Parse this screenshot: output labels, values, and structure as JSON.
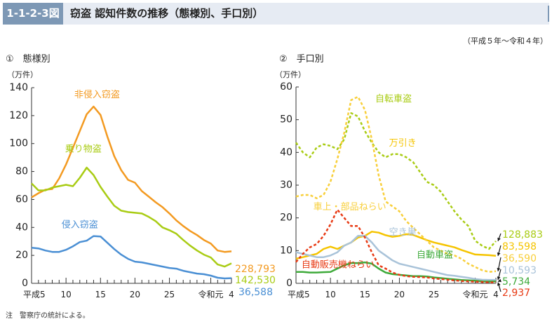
{
  "header": {
    "figure_id": "1-1-2-3図",
    "title": "窃盗 認知件数の推移（態様別、手口別）"
  },
  "period": "（平成５年～令和４年）",
  "note": "注　警察庁の統計による。",
  "chart_data": [
    {
      "type": "line",
      "title": "①　態様別",
      "ylabel": "（万件）",
      "ylim": [
        0,
        140
      ],
      "yticks": [
        0,
        20,
        40,
        60,
        80,
        100,
        120,
        140
      ],
      "x_tick_labels": [
        {
          "i": 0,
          "label": "平成5"
        },
        {
          "i": 5,
          "label": "10"
        },
        {
          "i": 10,
          "label": "15"
        },
        {
          "i": 15,
          "label": "20"
        },
        {
          "i": 20,
          "label": "25"
        },
        {
          "i": 26,
          "label": "令和元"
        },
        {
          "i": 29,
          "label": "4"
        }
      ],
      "years": 30,
      "series": [
        {
          "name": "非侵入窃盗",
          "color": "#f39a21",
          "dash": false,
          "end_value": "228,793",
          "values": [
            61.5,
            64.5,
            67,
            67.5,
            75,
            85,
            97,
            109,
            121,
            126.5,
            120.5,
            105,
            91,
            81,
            74,
            72,
            66,
            62,
            58,
            54.5,
            50,
            45,
            41,
            37.5,
            34.5,
            31,
            28.5,
            23.5,
            22.5,
            22.9
          ]
        },
        {
          "name": "乗り物盗",
          "color": "#a9cc14",
          "dash": false,
          "end_value": "142,530",
          "values": [
            71.5,
            66.5,
            66.5,
            68.5,
            69.5,
            70.5,
            69.5,
            75.5,
            82.8,
            77.5,
            69,
            62,
            55.5,
            52,
            51,
            50.5,
            50,
            47.5,
            44.5,
            40,
            38,
            35.5,
            31,
            27,
            23.5,
            20.5,
            18.5,
            13.5,
            12,
            14.3
          ]
        },
        {
          "name": "侵入窃盗",
          "color": "#4a8fd4",
          "dash": false,
          "end_value": "36,588",
          "values": [
            25.5,
            25,
            23.5,
            22.5,
            22.5,
            24,
            26.5,
            29.5,
            30.5,
            33.8,
            33.5,
            29,
            24.5,
            20.5,
            17.5,
            15.5,
            15,
            14,
            13,
            12,
            11,
            10.5,
            9,
            8,
            7,
            6.5,
            5.5,
            4,
            3.5,
            3.7
          ]
        }
      ]
    },
    {
      "type": "line",
      "title": "②　手口別",
      "ylabel": "（万件）",
      "ylim": [
        0,
        60
      ],
      "yticks": [
        0,
        10,
        20,
        30,
        40,
        50,
        60
      ],
      "x_tick_labels": [
        {
          "i": 0,
          "label": "平成5"
        },
        {
          "i": 5,
          "label": "10"
        },
        {
          "i": 10,
          "label": "15"
        },
        {
          "i": 15,
          "label": "20"
        },
        {
          "i": 20,
          "label": "25"
        },
        {
          "i": 26,
          "label": "令和元"
        },
        {
          "i": 29,
          "label": "4"
        }
      ],
      "years": 30,
      "series": [
        {
          "name": "自転車盗",
          "color": "#a9cc14",
          "dash": true,
          "end_value": "128,883",
          "values": [
            43,
            40,
            38.5,
            41.5,
            42.5,
            42,
            41,
            44,
            52,
            51,
            46.5,
            43,
            40,
            38.5,
            39.5,
            39.5,
            38.5,
            37,
            34,
            31,
            30,
            28,
            25,
            22,
            19.5,
            17.5,
            13,
            11.5,
            10.5,
            12.9
          ]
        },
        {
          "name": "万引き",
          "color": "#f5c400",
          "dash": false,
          "end_value": "83,598",
          "values": [
            7.5,
            8,
            8.5,
            9,
            10.5,
            11.2,
            10.5,
            11.5,
            12.5,
            14,
            14.5,
            15.8,
            15.5,
            14.7,
            14.2,
            14.5,
            15,
            14.8,
            14,
            13.2,
            12.5,
            12,
            11.5,
            11,
            10.2,
            9.5,
            8.8,
            8.7,
            8.6,
            8.4
          ]
        },
        {
          "name": "車上・部品ねらい",
          "color": "#f8cf3a",
          "dash": true,
          "end_value": "36,590",
          "values": [
            26.5,
            27,
            27,
            26,
            27,
            31,
            38,
            46,
            56,
            57,
            53,
            44,
            33,
            25,
            23.5,
            22,
            19,
            17,
            15,
            13,
            11,
            10,
            9,
            8.5,
            7.5,
            6,
            5,
            4,
            3.5,
            3.7
          ]
        },
        {
          "name": "空き巣",
          "color": "#a9c3d9",
          "dash": false,
          "end_value": "10,593",
          "values": [
            9.5,
            9,
            8.5,
            8,
            8,
            8.5,
            9.5,
            11.5,
            12.5,
            14.5,
            14.5,
            12.5,
            10,
            8.5,
            7,
            6,
            5.5,
            5,
            4.5,
            4,
            3.5,
            3,
            2.5,
            2.3,
            2,
            1.7,
            1.3,
            1.1,
            1.05,
            1.06
          ]
        },
        {
          "name": "自動車盗",
          "color": "#3eaa3a",
          "dash": false,
          "end_value": "5,734",
          "values": [
            3.5,
            3.5,
            3.3,
            3.3,
            3.4,
            3.5,
            4.5,
            5.5,
            6.2,
            6.2,
            6.4,
            6,
            4.5,
            3.3,
            2.8,
            2.6,
            2.4,
            2.2,
            2.2,
            2.1,
            1.8,
            1.6,
            1.4,
            1.2,
            1,
            0.9,
            0.8,
            0.6,
            0.55,
            0.57
          ]
        },
        {
          "name": "自動販売機ねらい",
          "color": "#e83a14",
          "dash": true,
          "end_value": "2,937",
          "values": [
            6.5,
            9,
            11,
            12,
            14.5,
            18,
            22.5,
            20,
            17.5,
            17.5,
            14,
            9.5,
            5.5,
            4.5,
            3.3,
            2.6,
            2.2,
            2,
            1.9,
            1.8,
            1.5,
            1.3,
            1.1,
            0.9,
            0.7,
            0.6,
            0.5,
            0.4,
            0.3,
            0.29
          ]
        }
      ]
    }
  ]
}
